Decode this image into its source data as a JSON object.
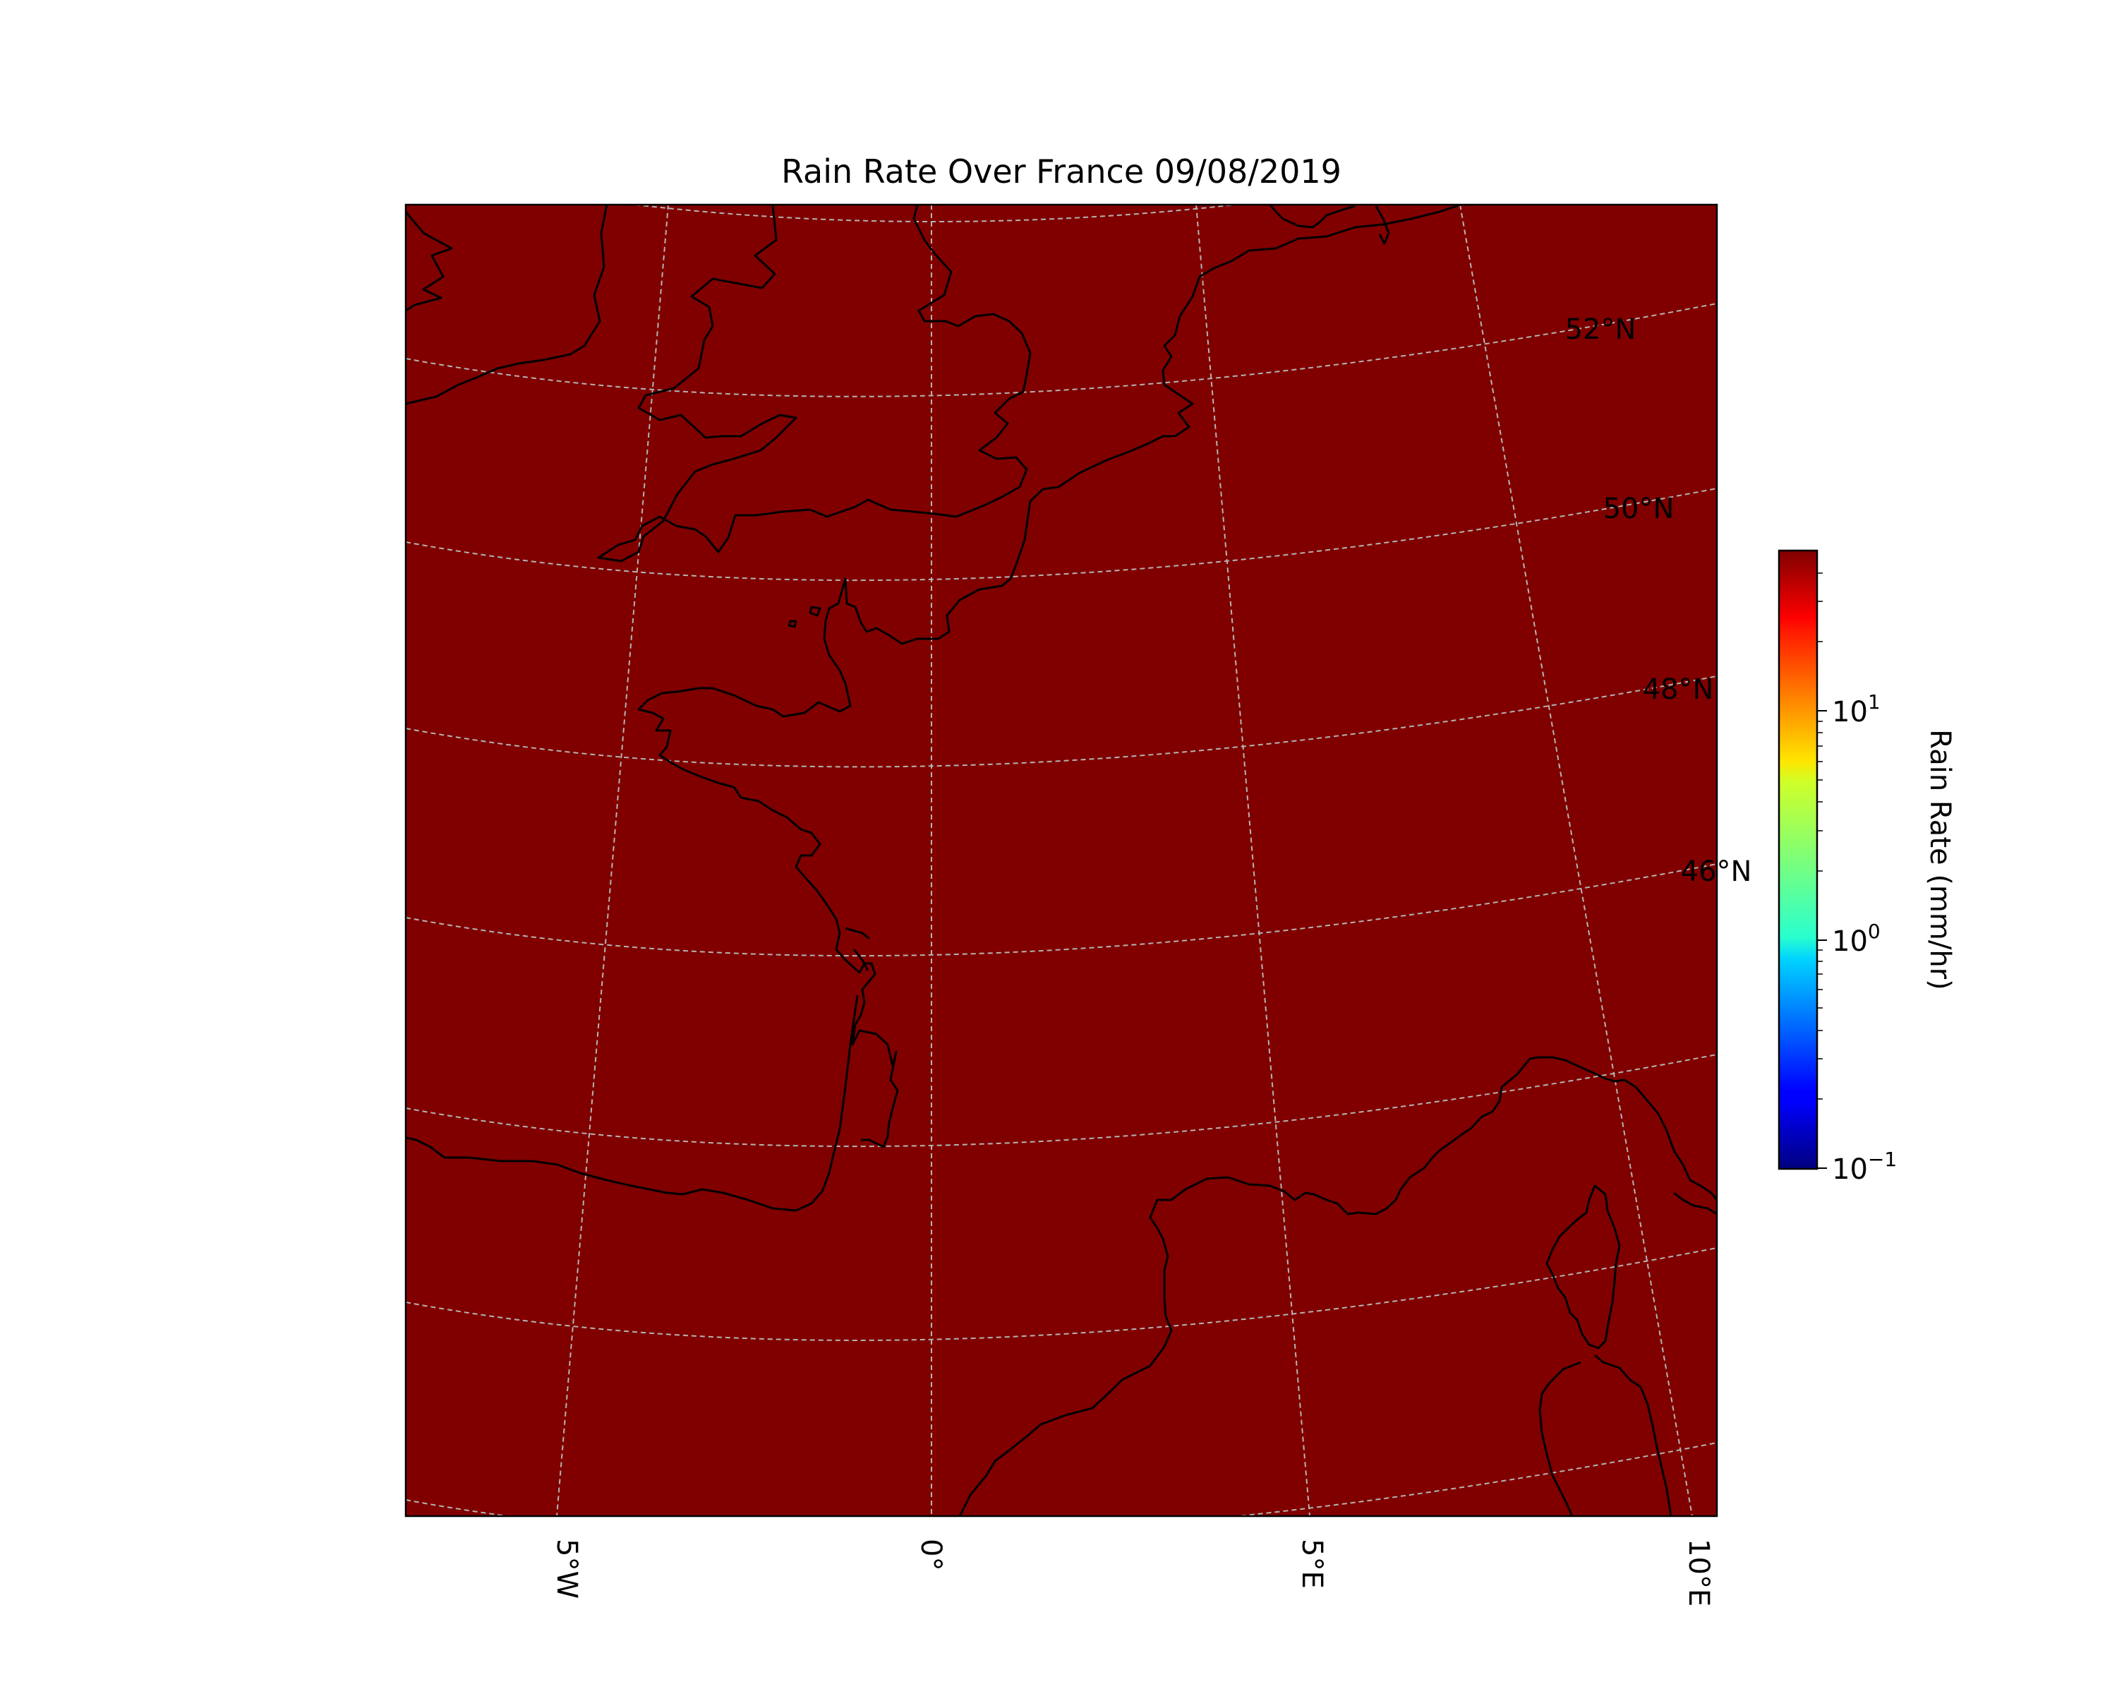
{
  "title": "Rain Rate Over France 09/08/2019",
  "map": {
    "fill_color": "#800000",
    "coastline_color": "#000000",
    "gridline_color": "#b4b4b4",
    "lon_labels": [
      "5°W",
      "0°",
      "5°E",
      "10°E"
    ],
    "lat_labels": [
      "52°N",
      "50°N",
      "48°N",
      "46°N"
    ]
  },
  "colorbar": {
    "label": "Rain Rate (mm/hr)",
    "colormap": "jet",
    "scale": "log",
    "tick_labels": [
      {
        "base": "10",
        "exp": "1"
      },
      {
        "base": "10",
        "exp": "0"
      },
      {
        "base": "10",
        "exp": "−1"
      }
    ]
  }
}
